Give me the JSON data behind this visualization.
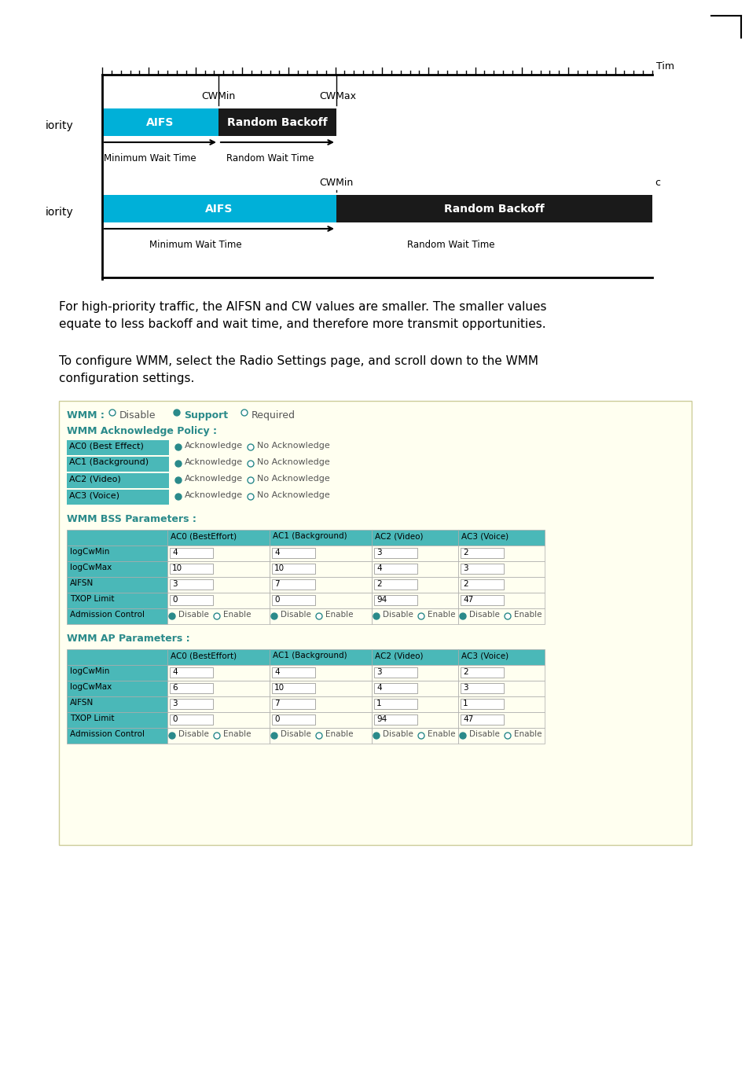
{
  "bg_color": "#ffffff",
  "aifs_color": "#00b0d8",
  "backoff_color": "#1a1a1a",
  "aifs_text": "AIFS",
  "backoff_text": "Random Backoff",
  "time_label": "Tim",
  "text1": "For high-priority traffic, the AIFSN and CW values are smaller. The smaller values\nequate to less backoff and wait time, and therefore more transmit opportunities.",
  "text2": "To configure WMM, select the Radio Settings page, and scroll down to the WMM\nconfiguration settings.",
  "teal_color": "#4ab8b8",
  "wmm_label_color": "#2a8a8a",
  "wmm_section_title_color": "#2a8a8a",
  "wmm_options": {
    "label": "WMM :",
    "options": [
      "Disable",
      "Support",
      "Required"
    ],
    "selected": 1
  },
  "ack_policy_title": "WMM Acknowledge Policy :",
  "ack_rows": [
    {
      "label": "AC0 (Best Effect)",
      "selected": "Acknowledge"
    },
    {
      "label": "AC1 (Background)",
      "selected": "Acknowledge"
    },
    {
      "label": "AC2 (Video)",
      "selected": "Acknowledge"
    },
    {
      "label": "AC3 (Voice)",
      "selected": "Acknowledge"
    }
  ],
  "bss_title": "WMM BSS Parameters :",
  "bss_cols": [
    "",
    "AC0 (BestEffort)",
    "AC1 (Background)",
    "AC2 (Video)",
    "AC3 (Voice)"
  ],
  "bss_rows": [
    {
      "label": "logCwMin",
      "vals": [
        "4",
        "4",
        "3",
        "2"
      ]
    },
    {
      "label": "logCwMax",
      "vals": [
        "10",
        "10",
        "4",
        "3"
      ]
    },
    {
      "label": "AIFSN",
      "vals": [
        "3",
        "7",
        "2",
        "2"
      ]
    },
    {
      "label": "TXOP Limit",
      "vals": [
        "0",
        "0",
        "94",
        "47"
      ]
    },
    {
      "label": "Admission Control",
      "vals": [
        "disable",
        "disable",
        "disable",
        "disable"
      ]
    }
  ],
  "ap_title": "WMM AP Parameters :",
  "ap_cols": [
    "",
    "AC0 (BestEffort)",
    "AC1 (Background)",
    "AC2 (Video)",
    "AC3 (Voice)"
  ],
  "ap_rows": [
    {
      "label": "logCwMin",
      "vals": [
        "4",
        "4",
        "3",
        "2"
      ]
    },
    {
      "label": "logCwMax",
      "vals": [
        "6",
        "10",
        "4",
        "3"
      ]
    },
    {
      "label": "AIFSN",
      "vals": [
        "3",
        "7",
        "1",
        "1"
      ]
    },
    {
      "label": "TXOP Limit",
      "vals": [
        "0",
        "0",
        "94",
        "47"
      ]
    },
    {
      "label": "Admission Control",
      "vals": [
        "disable",
        "disable",
        "disable",
        "disable"
      ]
    }
  ]
}
